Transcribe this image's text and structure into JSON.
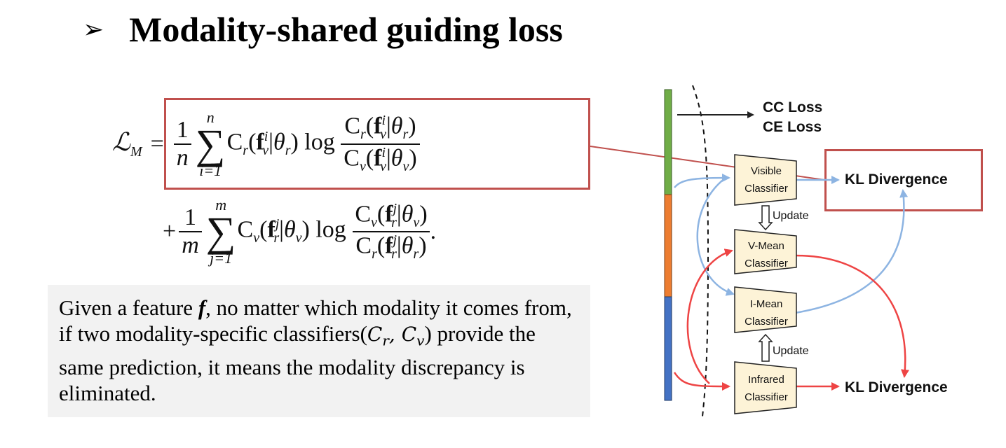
{
  "slide": {
    "bullet": "➢",
    "title": "Modality-shared guiding loss"
  },
  "formula": {
    "lhs": "ℒ",
    "lhs_sub": "M",
    "equals": "=",
    "plus": "+",
    "one": "1",
    "n": "n",
    "m": "m",
    "sum_lower_1": "i=1",
    "sum_upper_1": "n",
    "sum_lower_2": "j=1",
    "sum_upper_2": "m",
    "term1": "C_r(f_v^i|θ_r) log [C_r(f_v^i|θ_r) / C_v(f_v^i|θ_v)]",
    "term2": "C_v(f_r^j|θ_v) log [C_v(f_r^j|θ_v) / C_r(f_r^j|θ_r)]",
    "period": "."
  },
  "description": {
    "part1": "Given a feature ",
    "feature_symbol": "f",
    "part2": ", no matter which modality it comes from, if two modality-specific classifiers(",
    "symbols": "C",
    "part3": ") provide the same prediction, it means the modality discrepancy is eliminated."
  },
  "diagram": {
    "cc_loss": "CC Loss",
    "ce_loss": "CE Loss",
    "kl_top": "KL Divergence",
    "kl_bottom": "KL Divergence",
    "update_top": "Update",
    "update_bottom": "Update",
    "visible_1": "Visible",
    "visible_2": "Classifier",
    "vmean_1": "V-Mean",
    "vmean_2": "Classifier",
    "imean_1": "I-Mean",
    "imean_2": "Classifier",
    "infrared_1": "Infrared",
    "infrared_2": "Classifier"
  },
  "colors": {
    "highlight_border": "#c0504d",
    "bar_green": "#70ad47",
    "bar_orange": "#ed7d31",
    "bar_blue": "#4472c4",
    "arrow_blue": "#8db4e2",
    "arrow_red": "#ee4444",
    "classifier_fill": "#fdf3d7",
    "textbox_bg": "#f2f2f2"
  }
}
